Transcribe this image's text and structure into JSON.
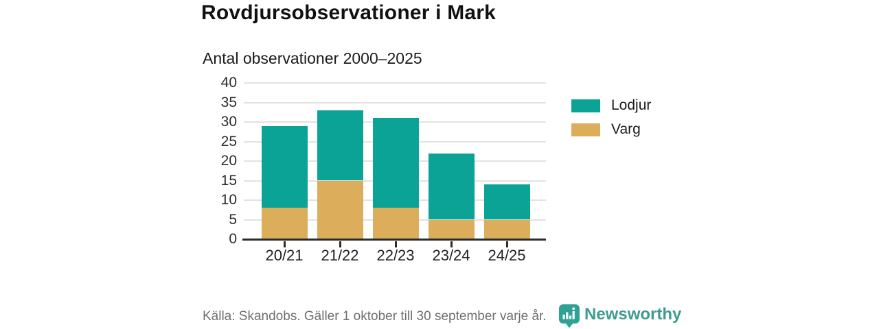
{
  "title": "Rovdjursobservationer i Mark",
  "subtitle": "Antal observationer 2000–2025",
  "footer": {
    "source": "Källa: Skandobs. Gäller 1 oktober till 30 september varje år.",
    "brand": "Newsworthy"
  },
  "colors": {
    "lodjur": "#0aa396",
    "varg": "#dcae5c",
    "grid": "#e2e2e2",
    "axis": "#2b2b2b",
    "muted_text": "#6f6f6f",
    "brand_teal": "#3e9b91"
  },
  "chart_data": {
    "type": "bar",
    "stacked": true,
    "title": "Rovdjursobservationer i Mark",
    "subtitle": "Antal observationer 2000–2025",
    "categories": [
      "20/21",
      "21/22",
      "22/23",
      "23/24",
      "24/25"
    ],
    "series": [
      {
        "name": "Varg",
        "color": "#dcae5c",
        "values": [
          8,
          15,
          8,
          5,
          5
        ]
      },
      {
        "name": "Lodjur",
        "color": "#0aa396",
        "values": [
          21,
          18,
          23,
          17,
          9
        ]
      }
    ],
    "totals": [
      29,
      33,
      31,
      22,
      14
    ],
    "yticks": [
      0,
      5,
      10,
      15,
      20,
      25,
      30,
      35,
      40
    ],
    "ylim": [
      0,
      40
    ],
    "xlabel": "",
    "ylabel": "",
    "grid": true,
    "legend": [
      "Lodjur",
      "Varg"
    ],
    "legend_position": "right"
  }
}
